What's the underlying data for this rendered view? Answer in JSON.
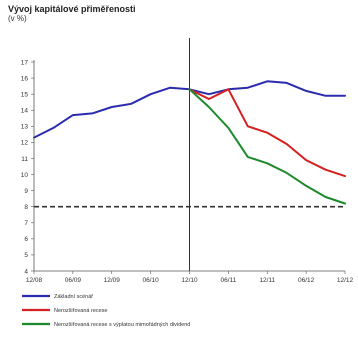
{
  "chart_data": {
    "type": "line",
    "title": "Vývoj kapitálové přiměřenosti",
    "subtitle": "(v %)",
    "x_ticks": [
      "12/08",
      "06/09",
      "12/09",
      "06/10",
      "12/10",
      "06/11",
      "12/11",
      "06/12",
      "12/12"
    ],
    "y_ticks": [
      4,
      5,
      6,
      7,
      8,
      9,
      10,
      11,
      12,
      13,
      14,
      15,
      16,
      17
    ],
    "ylim": [
      4,
      17
    ],
    "xlim": [
      "12/08",
      "12/12"
    ],
    "vertical_marker_x": "12/10",
    "reference_line": {
      "y": 8,
      "style": "dashed",
      "color": "#333333"
    },
    "series": [
      {
        "name": "Základní scénář",
        "color": "#2b2bb0",
        "points": [
          [
            "12/08",
            12.3
          ],
          [
            "03/09",
            12.9
          ],
          [
            "06/09",
            13.7
          ],
          [
            "09/09",
            13.8
          ],
          [
            "12/09",
            14.2
          ],
          [
            "03/10",
            14.4
          ],
          [
            "06/10",
            15.0
          ],
          [
            "09/10",
            15.4
          ],
          [
            "12/10",
            15.3
          ],
          [
            "03/11",
            15.0
          ],
          [
            "06/11",
            15.3
          ],
          [
            "09/11",
            15.4
          ],
          [
            "12/11",
            15.8
          ],
          [
            "03/12",
            15.7
          ],
          [
            "06/12",
            15.2
          ],
          [
            "09/12",
            14.9
          ],
          [
            "12/12",
            14.9
          ]
        ]
      },
      {
        "name": "Nerozšiřovaná recese",
        "color": "#d42020",
        "points": [
          [
            "12/10",
            15.3
          ],
          [
            "03/11",
            14.7
          ],
          [
            "06/11",
            15.3
          ],
          [
            "09/11",
            13.0
          ],
          [
            "12/11",
            12.6
          ],
          [
            "03/12",
            11.9
          ],
          [
            "06/12",
            10.9
          ],
          [
            "09/12",
            10.3
          ],
          [
            "12/12",
            9.9
          ]
        ]
      },
      {
        "name": "Nerozšiřovaná recese s výplatou mimořádných dividend",
        "color": "#1d8a2b",
        "points": [
          [
            "12/10",
            15.3
          ],
          [
            "03/11",
            14.2
          ],
          [
            "06/11",
            12.9
          ],
          [
            "09/11",
            11.1
          ],
          [
            "12/11",
            10.7
          ],
          [
            "03/12",
            10.1
          ],
          [
            "06/12",
            9.3
          ],
          [
            "09/12",
            8.6
          ],
          [
            "12/12",
            8.2
          ]
        ]
      }
    ],
    "legend_position": "bottom"
  }
}
